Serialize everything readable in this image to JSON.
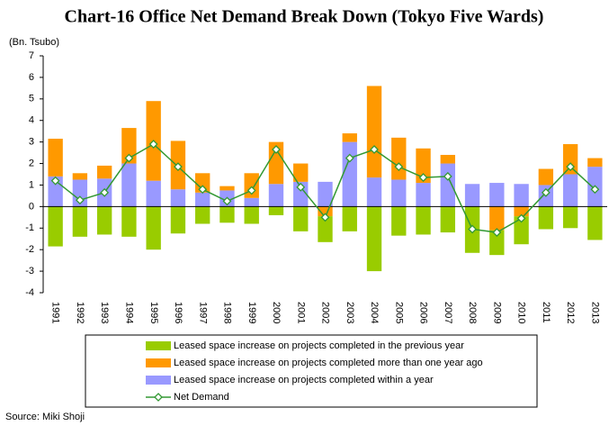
{
  "chart_data": {
    "type": "bar",
    "title": "Chart-16 Office Net Demand Break Down (Tokyo Five Wards)",
    "y_label": "(Bn. Tsubo)",
    "source": "Source: Miki Shoji",
    "categories": [
      "1991",
      "1992",
      "1993",
      "1994",
      "1995",
      "1996",
      "1997",
      "1998",
      "1999",
      "2000",
      "2001",
      "2002",
      "2003",
      "2004",
      "2005",
      "2006",
      "2007",
      "2008",
      "2009",
      "2010",
      "2011",
      "2012",
      "2013"
    ],
    "series": [
      {
        "name": "Leased space increase on projects completed in the previous year",
        "color": "#99cc00",
        "values": [
          -1.85,
          -1.4,
          -1.3,
          -1.4,
          -2.0,
          -1.25,
          -0.8,
          -0.75,
          -0.8,
          -0.4,
          -1.15,
          -1.2,
          -1.15,
          -3.0,
          -1.35,
          -1.3,
          -1.2,
          -2.15,
          -1.15,
          -1.3,
          -1.05,
          -1.0,
          -1.55
        ]
      },
      {
        "name": "Leased space increase on projects completed more than one year ago",
        "color": "#ff9900",
        "values": [
          1.75,
          0.3,
          0.6,
          1.65,
          3.7,
          2.25,
          0.9,
          0.2,
          1.15,
          1.95,
          0.85,
          -0.45,
          0.4,
          4.25,
          1.95,
          1.6,
          0.4,
          0,
          -1.1,
          -0.45,
          0.75,
          1.4,
          0.4
        ]
      },
      {
        "name": "Leased space increase on projects completed within a year",
        "color": "#9999ff",
        "values": [
          1.4,
          1.25,
          1.3,
          2.0,
          1.2,
          0.8,
          0.65,
          0.75,
          0.4,
          1.05,
          1.15,
          1.15,
          3.0,
          1.35,
          1.25,
          1.1,
          2.0,
          1.05,
          1.1,
          1.05,
          1.0,
          1.5,
          1.85
        ]
      },
      {
        "name": "Net Demand",
        "color": "#339933",
        "type": "line",
        "values": [
          1.2,
          0.3,
          0.65,
          2.25,
          2.9,
          1.85,
          0.8,
          0.25,
          0.75,
          2.65,
          0.9,
          -0.5,
          2.25,
          2.65,
          1.85,
          1.35,
          1.4,
          -1.05,
          -1.2,
          -0.55,
          0.65,
          1.85,
          0.8
        ]
      }
    ],
    "ylim": [
      -4,
      7
    ],
    "yticks": [
      -4,
      -3,
      -2,
      -1,
      0,
      1,
      2,
      3,
      4,
      5,
      6,
      7
    ],
    "grid": false
  }
}
